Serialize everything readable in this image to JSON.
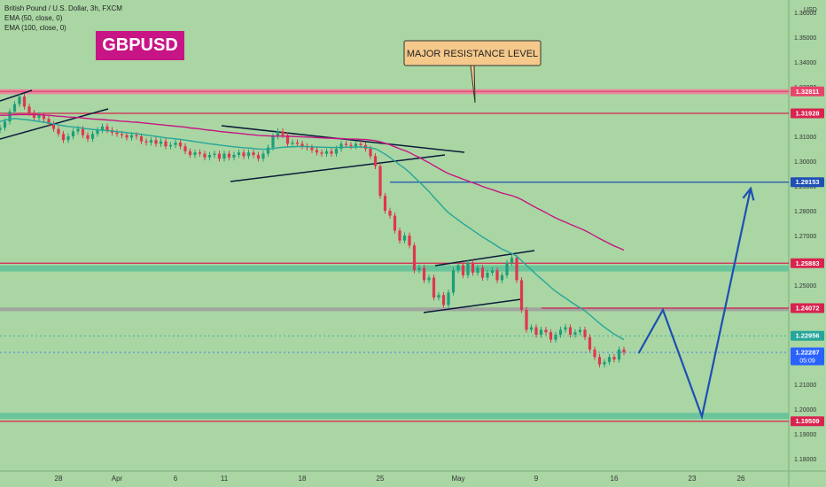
{
  "header": {
    "symbol_line": "British Pound / U.S. Dollar, 3h, FXCM",
    "ema1": "EMA (50, close, 0)",
    "ema2": "EMA (100, close, 0)",
    "badge": "GBPUSD"
  },
  "callout": {
    "text": "MAJOR RESISTANCE LEVEL"
  },
  "chart_data": {
    "type": "candlestick",
    "axis_unit": "USD",
    "ylim": [
      1.175,
      1.365
    ],
    "y_ticks": [
      "1.36000",
      "1.35000",
      "1.34000",
      "1.33000",
      "1.32000",
      "1.31000",
      "1.30000",
      "1.29000",
      "1.28000",
      "1.27000",
      "1.26000",
      "1.25000",
      "1.24000",
      "1.23000",
      "1.22000",
      "1.21000",
      "1.20000",
      "1.19000",
      "1.18000"
    ],
    "x_ticks": [
      {
        "label": "28",
        "i": 12
      },
      {
        "label": "Apr",
        "i": 24
      },
      {
        "label": "6",
        "i": 36
      },
      {
        "label": "11",
        "i": 46
      },
      {
        "label": "18",
        "i": 62
      },
      {
        "label": "25",
        "i": 78
      },
      {
        "label": "May",
        "i": 94
      },
      {
        "label": "9",
        "i": 110
      },
      {
        "label": "16",
        "i": 126
      },
      {
        "label": "23",
        "i": 142
      },
      {
        "label": "26",
        "i": 152
      }
    ],
    "closes": [
      1.3135,
      1.316,
      1.32,
      1.323,
      1.326,
      1.322,
      1.3195,
      1.3175,
      1.3185,
      1.317,
      1.315,
      1.313,
      1.311,
      1.3085,
      1.31,
      1.312,
      1.313,
      1.3105,
      1.309,
      1.311,
      1.3125,
      1.314,
      1.3125,
      1.3115,
      1.311,
      1.3105,
      1.3095,
      1.3105,
      1.31,
      1.308,
      1.3075,
      1.3085,
      1.307,
      1.308,
      1.306,
      1.3065,
      1.3075,
      1.306,
      1.304,
      1.3025,
      1.3035,
      1.303,
      1.3015,
      1.3025,
      1.303,
      1.301,
      1.303,
      1.3015,
      1.3025,
      1.3035,
      1.302,
      1.3035,
      1.3025,
      1.301,
      1.303,
      1.3055,
      1.31,
      1.312,
      1.3105,
      1.307,
      1.3075,
      1.307,
      1.306,
      1.3055,
      1.3045,
      1.3035,
      1.303,
      1.304,
      1.303,
      1.305,
      1.307,
      1.3065,
      1.306,
      1.307,
      1.3065,
      1.305,
      1.302,
      1.298,
      1.286,
      1.28,
      1.278,
      1.272,
      1.268,
      1.27,
      1.266,
      1.256,
      1.257,
      1.252,
      1.253,
      1.245,
      1.246,
      1.242,
      1.247,
      1.256,
      1.258,
      1.254,
      1.259,
      1.255,
      1.257,
      1.253,
      1.255,
      1.256,
      1.252,
      1.254,
      1.259,
      1.261,
      1.252,
      1.24,
      1.232,
      1.233,
      1.23,
      1.232,
      1.231,
      1.228,
      1.23,
      1.232,
      1.233,
      1.23,
      1.231,
      1.232,
      1.229,
      1.224,
      1.221,
      1.218,
      1.219,
      1.221,
      1.22,
      1.224,
      1.2229
    ],
    "series": [
      {
        "name": "EMA (50, close, 0)",
        "color": "#26a69a",
        "values": [
          1.316,
          1.3165,
          1.317,
          1.3172,
          1.317,
          1.3168,
          1.3166,
          1.3163,
          1.316,
          1.3157,
          1.3154,
          1.315,
          1.3146,
          1.3143,
          1.314,
          1.3138,
          1.3136,
          1.3133,
          1.313,
          1.3128,
          1.3126,
          1.3125,
          1.3123,
          1.3121,
          1.3119,
          1.3117,
          1.3115,
          1.3113,
          1.3111,
          1.3108,
          1.3105,
          1.3103,
          1.31,
          1.3097,
          1.3094,
          1.3092,
          1.309,
          1.3088,
          1.3085,
          1.3082,
          1.3079,
          1.3076,
          1.3073,
          1.307,
          1.3068,
          1.3065,
          1.3063,
          1.306,
          1.3058,
          1.3056,
          1.3054,
          1.3053,
          1.3051,
          1.3049,
          1.3048,
          1.3049,
          1.3051,
          1.3054,
          1.3056,
          1.3057,
          1.3058,
          1.3059,
          1.3059,
          1.3059,
          1.3058,
          1.3057,
          1.3056,
          1.3056,
          1.3055,
          1.3055,
          1.3056,
          1.3056,
          1.3056,
          1.3057,
          1.3057,
          1.3056,
          1.3054,
          1.305,
          1.304,
          1.3028,
          1.3015,
          1.3,
          1.2985,
          1.2971,
          1.2955,
          1.2935,
          1.2917,
          1.2897,
          1.2878,
          1.2855,
          1.2834,
          1.2812,
          1.2792,
          1.2777,
          1.2763,
          1.2748,
          1.2735,
          1.2721,
          1.2708,
          1.2694,
          1.2682,
          1.267,
          1.2657,
          1.2645,
          1.2636,
          1.2628,
          1.2616,
          1.2599,
          1.258,
          1.2562,
          1.2543,
          1.2526,
          1.2509,
          1.2491,
          1.2475,
          1.2461,
          1.2448,
          1.2434,
          1.2421,
          1.2409,
          1.2396,
          1.238,
          1.2363,
          1.2346,
          1.233,
          1.2316,
          1.2302,
          1.2291,
          1.228
        ]
      },
      {
        "name": "EMA (100, close, 0)",
        "color": "#c71585",
        "values": [
          1.3185,
          1.3185,
          1.3186,
          1.3187,
          1.3188,
          1.3188,
          1.3188,
          1.3188,
          1.3187,
          1.3186,
          1.3185,
          1.3183,
          1.3181,
          1.318,
          1.3178,
          1.3177,
          1.3176,
          1.3174,
          1.3172,
          1.317,
          1.3169,
          1.3168,
          1.3166,
          1.3165,
          1.3163,
          1.3161,
          1.316,
          1.3158,
          1.3157,
          1.3155,
          1.3153,
          1.3151,
          1.3149,
          1.3147,
          1.3145,
          1.3143,
          1.3141,
          1.3139,
          1.3137,
          1.3134,
          1.3132,
          1.313,
          1.3127,
          1.3125,
          1.3123,
          1.312,
          1.3118,
          1.3116,
          1.3114,
          1.3112,
          1.311,
          1.3108,
          1.3106,
          1.3104,
          1.3103,
          1.3102,
          1.3101,
          1.3101,
          1.3101,
          1.31,
          1.31,
          1.3099,
          1.3098,
          1.3097,
          1.3096,
          1.3095,
          1.3094,
          1.3093,
          1.3092,
          1.3091,
          1.3091,
          1.309,
          1.3089,
          1.3089,
          1.3088,
          1.3087,
          1.3085,
          1.3083,
          1.3078,
          1.3072,
          1.3066,
          1.3058,
          1.305,
          1.3043,
          1.3035,
          1.3024,
          1.3015,
          1.3004,
          1.2994,
          1.2982,
          1.2971,
          1.296,
          1.295,
          1.2942,
          1.2935,
          1.2927,
          1.292,
          1.2913,
          1.2906,
          1.2898,
          1.2891,
          1.2885,
          1.2878,
          1.2871,
          1.2866,
          1.2861,
          1.2854,
          1.2845,
          1.2834,
          1.2823,
          1.2812,
          1.2802,
          1.2792,
          1.2781,
          1.2771,
          1.2762,
          1.2754,
          1.2745,
          1.2737,
          1.2729,
          1.272,
          1.271,
          1.2699,
          1.2688,
          1.2678,
          1.2668,
          1.2658,
          1.265,
          1.2641
        ]
      }
    ],
    "levels": [
      {
        "label": "1.32811",
        "value": 1.32811,
        "color": "#e8436b"
      },
      {
        "label": "1.31928",
        "value": 1.31928,
        "color": "#d8234f"
      },
      {
        "label": "1.29153",
        "value": 1.29153,
        "color": "#1e4fb4"
      },
      {
        "label": "1.25883",
        "value": 1.25883,
        "color": "#d8234f"
      },
      {
        "label": "1.24072",
        "value": 1.24072,
        "color": "#d8234f"
      },
      {
        "label": "1.22956",
        "value": 1.22956,
        "color": "#26a69a"
      },
      {
        "label": "1.22287",
        "value": 1.22287,
        "color": "#2962ff"
      },
      {
        "label": "1.19509",
        "value": 1.19509,
        "color": "#d8234f"
      }
    ],
    "countdown": "05:09",
    "zones": [
      {
        "from": 1.327,
        "to": 1.329,
        "color": "#f07b9c"
      },
      {
        "from": 1.2555,
        "to": 1.258,
        "color": "#5fc29a"
      },
      {
        "from": 1.2395,
        "to": 1.241,
        "color": "#9e9e9e"
      },
      {
        "from": 1.196,
        "to": 1.1985,
        "color": "#5fc29a"
      }
    ],
    "projection": [
      {
        "i": 131,
        "v": 1.2225
      },
      {
        "i": 136,
        "v": 1.24
      },
      {
        "i": 144,
        "v": 1.197
      },
      {
        "i": 154,
        "v": 1.289
      }
    ]
  }
}
